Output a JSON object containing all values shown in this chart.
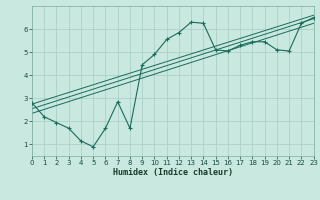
{
  "xlabel": "Humidex (Indice chaleur)",
  "ylabel": "",
  "xlim": [
    0,
    23
  ],
  "ylim": [
    0.5,
    7.0
  ],
  "bg_color": "#c8e8e0",
  "grid_color": "#a8ccc4",
  "line_color": "#1a6b5a",
  "curve_x": [
    0,
    1,
    2,
    3,
    4,
    5,
    6,
    7,
    8,
    9,
    10,
    11,
    12,
    13,
    14,
    15,
    16,
    17,
    18,
    19,
    20,
    21,
    22,
    23
  ],
  "curve_y": [
    2.8,
    2.2,
    1.95,
    1.7,
    1.15,
    0.9,
    1.7,
    2.85,
    1.7,
    4.45,
    4.9,
    5.55,
    5.85,
    6.3,
    6.25,
    5.1,
    5.05,
    5.3,
    5.45,
    5.45,
    5.1,
    5.05,
    6.25,
    6.5
  ],
  "line1_x": [
    0,
    23
  ],
  "line1_y": [
    2.75,
    6.6
  ],
  "line2_x": [
    0,
    23
  ],
  "line2_y": [
    2.55,
    6.45
  ],
  "line3_x": [
    0,
    23
  ],
  "line3_y": [
    2.35,
    6.25
  ],
  "yticks": [
    1,
    2,
    3,
    4,
    5,
    6
  ],
  "xticks": [
    0,
    1,
    2,
    3,
    4,
    5,
    6,
    7,
    8,
    9,
    10,
    11,
    12,
    13,
    14,
    15,
    16,
    17,
    18,
    19,
    20,
    21,
    22,
    23
  ],
  "tick_fontsize": 5.0,
  "xlabel_fontsize": 6.0
}
